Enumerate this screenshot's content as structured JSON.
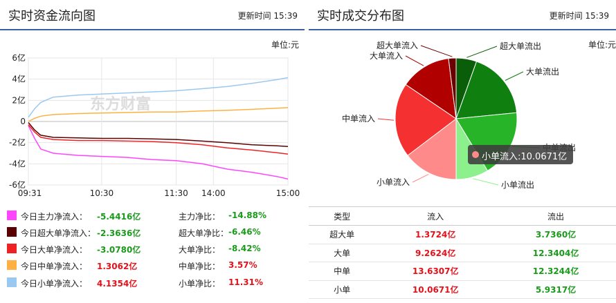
{
  "left_panel": {
    "title": "实时资金流向图",
    "updated_label": "更新时间",
    "updated_time": "15:39",
    "unit": "单位:元",
    "watermark": "东方财富",
    "legend": [
      {
        "color": "#ff44ff",
        "label": "今日主力净流入：",
        "value": "-5.4416亿",
        "value_sign": "neg",
        "ratio_label": "主力净比：",
        "ratio": "-14.88%",
        "ratio_sign": "neg"
      },
      {
        "color": "#5a0000",
        "label": "今日超大单净流入：",
        "value": "-2.3636亿",
        "value_sign": "neg",
        "ratio_label": "超大单净比：",
        "ratio": "-6.46%",
        "ratio_sign": "neg"
      },
      {
        "color": "#ee2222",
        "label": "今日大单净流入：",
        "value": "-3.0780亿",
        "value_sign": "neg",
        "ratio_label": "大单净比：",
        "ratio": "-8.42%",
        "ratio_sign": "neg"
      },
      {
        "color": "#ffb040",
        "label": "今日中单净流入：",
        "value": "1.3062亿",
        "value_sign": "pos",
        "ratio_label": "中单净比：",
        "ratio": "3.57%",
        "ratio_sign": "pos"
      },
      {
        "color": "#99c8f0",
        "label": "今日小单净流入：",
        "value": "4.1354亿",
        "value_sign": "pos",
        "ratio_label": "小单净比：",
        "ratio": "11.31%",
        "ratio_sign": "pos"
      }
    ]
  },
  "right_panel": {
    "title": "实时成交分布图",
    "updated_label": "更新时间",
    "updated_time": "15:39",
    "unit": "单位:元",
    "tooltip": "小单流入:10.0671亿",
    "table": {
      "headers": [
        "类型",
        "流入",
        "流出"
      ],
      "rows": [
        {
          "type": "超大单",
          "in": "1.3724亿",
          "out": "3.7360亿"
        },
        {
          "type": "大单",
          "in": "9.2624亿",
          "out": "12.3404亿"
        },
        {
          "type": "中单",
          "in": "13.6307亿",
          "out": "12.3244亿"
        },
        {
          "type": "小单",
          "in": "10.0671亿",
          "out": "5.9317亿"
        }
      ]
    }
  },
  "chart_data": [
    {
      "type": "line",
      "title": "实时资金流向图",
      "y_unit": "亿",
      "ylim": [
        -6,
        6
      ],
      "y_ticks": [
        "6亿",
        "4亿",
        "2亿",
        "0",
        "-2亿",
        "-4亿",
        "-6亿"
      ],
      "y_tick_values": [
        6,
        4,
        2,
        0,
        -2,
        -4,
        -6
      ],
      "x_ticks": [
        "09:31",
        "10:30",
        "11:30",
        "14:00",
        "15:00"
      ],
      "x_tick_minutes": [
        0,
        59,
        119,
        149,
        209
      ],
      "x_range_minutes": [
        0,
        209
      ],
      "grid": true,
      "series": [
        {
          "label": "今日主力净流入",
          "color": "#ff44ff",
          "x": [
            0,
            5,
            10,
            20,
            40,
            60,
            80,
            100,
            119,
            140,
            160,
            180,
            200,
            209
          ],
          "y": [
            -0.4,
            -1.6,
            -2.6,
            -3.0,
            -3.2,
            -3.3,
            -3.4,
            -3.6,
            -3.7,
            -4.0,
            -4.5,
            -4.8,
            -5.2,
            -5.44
          ]
        },
        {
          "label": "今日超大单净流入",
          "color": "#5a0000",
          "x": [
            0,
            5,
            10,
            20,
            40,
            60,
            80,
            100,
            119,
            140,
            160,
            180,
            200,
            209
          ],
          "y": [
            -0.1,
            -0.8,
            -1.3,
            -1.5,
            -1.55,
            -1.6,
            -1.6,
            -1.65,
            -1.7,
            -1.85,
            -2.0,
            -2.2,
            -2.3,
            -2.36
          ]
        },
        {
          "label": "今日大单净流入",
          "color": "#ee2222",
          "x": [
            0,
            5,
            10,
            20,
            40,
            60,
            80,
            100,
            119,
            140,
            160,
            180,
            200,
            209
          ],
          "y": [
            -0.3,
            -1.0,
            -1.5,
            -1.7,
            -1.8,
            -1.8,
            -1.85,
            -1.9,
            -2.0,
            -2.2,
            -2.5,
            -2.7,
            -2.95,
            -3.08
          ]
        },
        {
          "label": "今日中单净流入",
          "color": "#ffb040",
          "x": [
            0,
            5,
            10,
            20,
            40,
            60,
            80,
            100,
            119,
            140,
            160,
            180,
            200,
            209
          ],
          "y": [
            0.0,
            0.3,
            0.5,
            0.65,
            0.75,
            0.8,
            0.85,
            0.9,
            0.9,
            1.0,
            1.05,
            1.15,
            1.25,
            1.31
          ]
        },
        {
          "label": "今日小单净流入",
          "color": "#99c8f0",
          "x": [
            0,
            5,
            10,
            20,
            40,
            60,
            80,
            100,
            119,
            140,
            160,
            180,
            200,
            209
          ],
          "y": [
            0.4,
            1.2,
            1.8,
            2.3,
            2.5,
            2.6,
            2.7,
            2.8,
            2.9,
            3.1,
            3.3,
            3.6,
            3.95,
            4.14
          ]
        }
      ]
    },
    {
      "type": "pie",
      "title": "实时成交分布图",
      "unit": "亿",
      "slices": [
        {
          "label": "超大单流出",
          "value": 3.736,
          "color": "#0a5e0a"
        },
        {
          "label": "大单流出",
          "value": 12.3404,
          "color": "#0f7f0f"
        },
        {
          "label": "中单流出",
          "value": 12.3244,
          "color": "#28b428"
        },
        {
          "label": "小单流出",
          "value": 5.9317,
          "color": "#8cf08c"
        },
        {
          "label": "小单流入",
          "value": 10.0671,
          "color": "#ff8a8a"
        },
        {
          "label": "中单流入",
          "value": 13.6307,
          "color": "#f53030"
        },
        {
          "label": "大单流入",
          "value": 9.2624,
          "color": "#b00000"
        },
        {
          "label": "超大单流入",
          "value": 1.3724,
          "color": "#6a0000"
        }
      ]
    }
  ]
}
